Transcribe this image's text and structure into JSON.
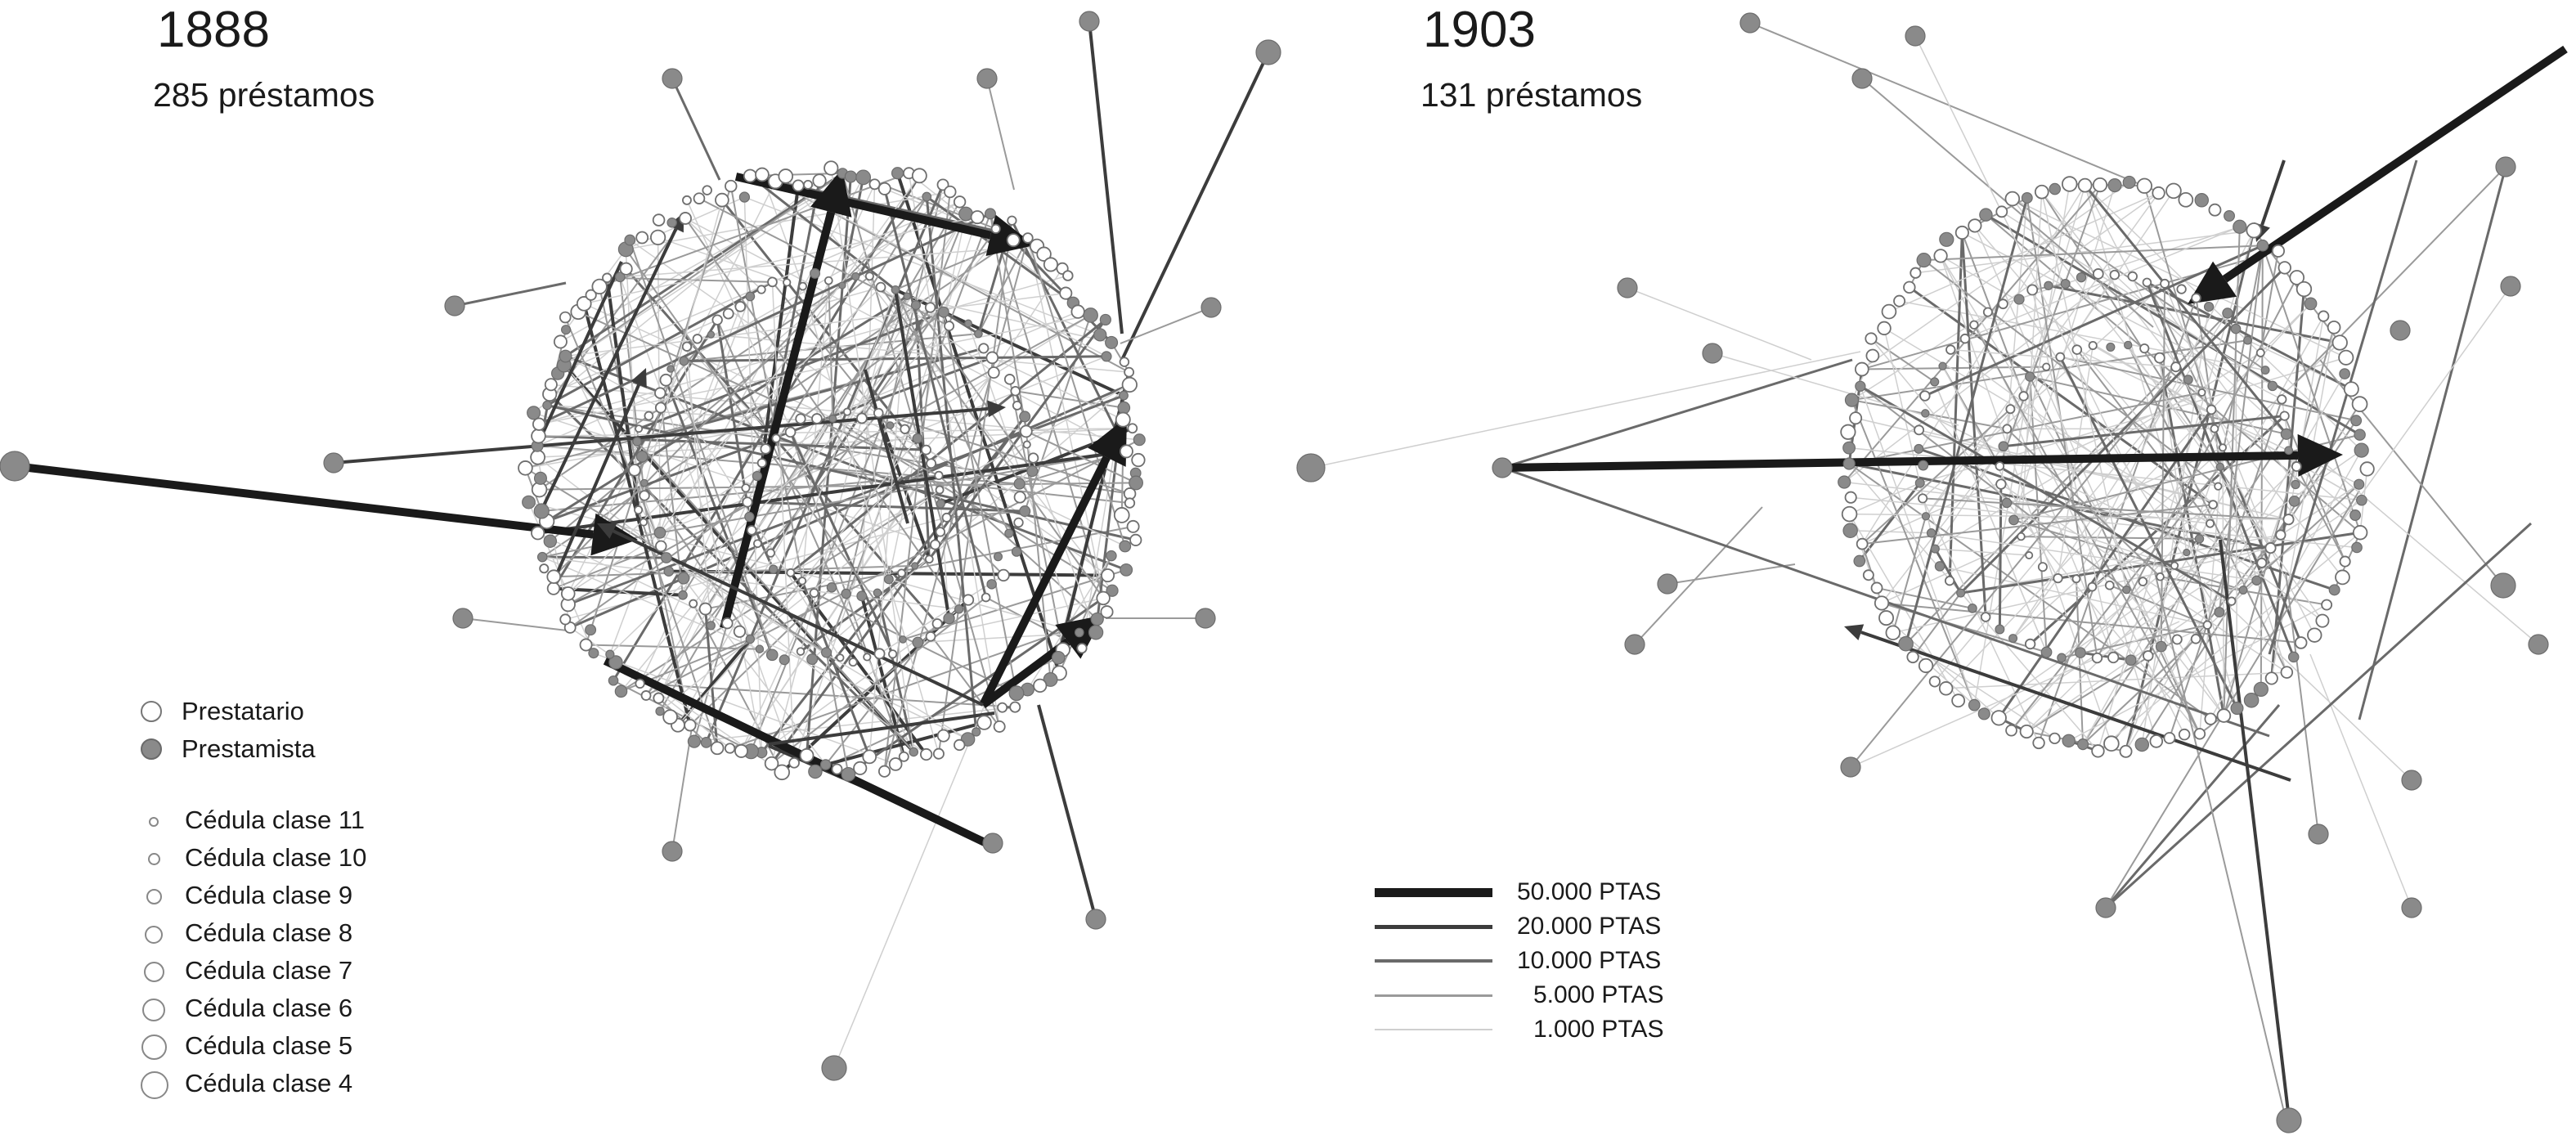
{
  "panels": [
    {
      "year": "1888",
      "loans_label": "285 préstamos"
    },
    {
      "year": "1903",
      "loans_label": "131 préstamos"
    }
  ],
  "legend_roles": [
    {
      "label": "Prestatario",
      "fill": "#ffffff",
      "stroke": "#777777"
    },
    {
      "label": "Prestamista",
      "fill": "#8a8a8a",
      "stroke": "#6a6a6a"
    }
  ],
  "legend_sizes": [
    {
      "label": "Cédula clase 11"
    },
    {
      "label": "Cédula clase 10"
    },
    {
      "label": "Cédula clase 9"
    },
    {
      "label": "Cédula clase 8"
    },
    {
      "label": "Cédula clase 7"
    },
    {
      "label": "Cédula clase 6"
    },
    {
      "label": "Cédula clase 5"
    },
    {
      "label": "Cédula clase 4"
    }
  ],
  "legend_weights": [
    {
      "label": "50.000 PTAS",
      "color": "#1a1a1a"
    },
    {
      "label": "20.000 PTAS",
      "color": "#3c3c3c"
    },
    {
      "label": "10.000 PTAS",
      "color": "#6a6a6a"
    },
    {
      "label": "5.000 PTAS",
      "color": "#9a9a9a"
    },
    {
      "label": "1.000 PTAS",
      "color": "#cfcfcf"
    }
  ],
  "colors": {
    "borrower_fill": "#ffffff",
    "lender_fill": "#8a8a8a",
    "node_stroke": "#6f6f6f",
    "text": "#1a1a1a"
  }
}
